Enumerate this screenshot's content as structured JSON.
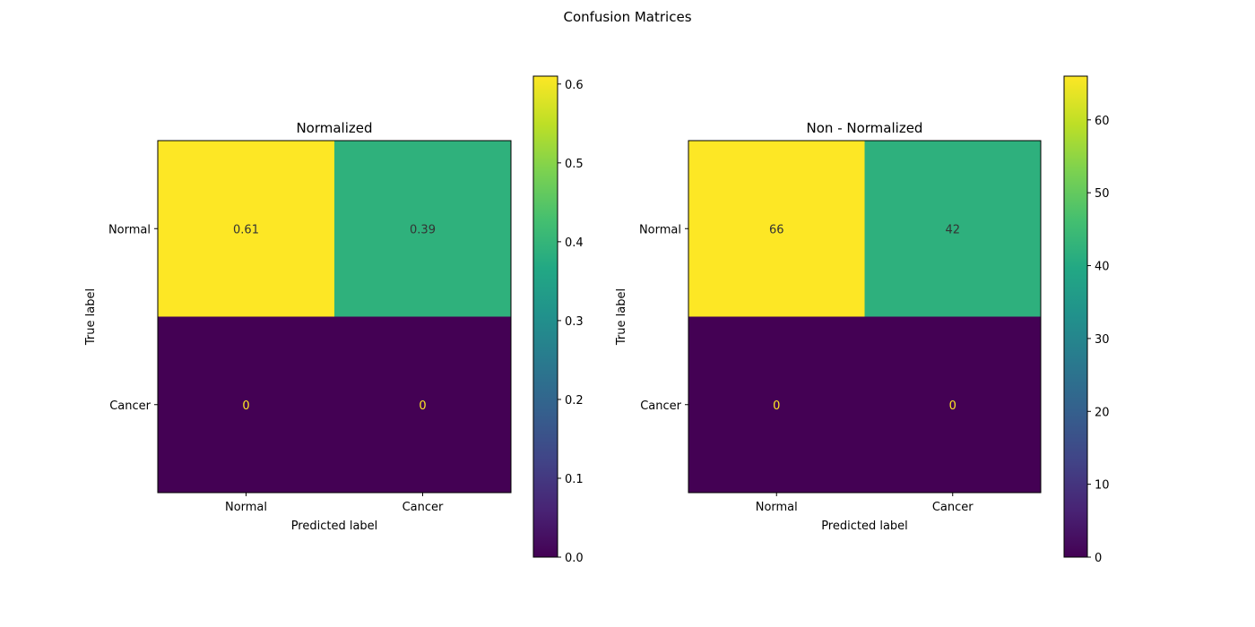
{
  "figure_title": "Confusion Matrices",
  "chart_data": [
    {
      "type": "heatmap",
      "title": "Normalized",
      "xlabel": "Predicted label",
      "ylabel": "True label",
      "x_categories": [
        "Normal",
        "Cancer"
      ],
      "y_categories": [
        "Normal",
        "Cancer"
      ],
      "values": [
        [
          0.61,
          0.39
        ],
        [
          0,
          0
        ]
      ],
      "cell_labels": [
        [
          "0.61",
          "0.39"
        ],
        [
          "0",
          "0"
        ]
      ],
      "colorbar": {
        "range": [
          0,
          0.61
        ],
        "ticks": [
          0.0,
          0.1,
          0.2,
          0.3,
          0.4,
          0.5,
          0.6
        ],
        "tick_labels": [
          "0.0",
          "0.1",
          "0.2",
          "0.3",
          "0.4",
          "0.5",
          "0.6"
        ],
        "colormap": "viridis"
      }
    },
    {
      "type": "heatmap",
      "title": "Non - Normalized",
      "xlabel": "Predicted label",
      "ylabel": "True label",
      "x_categories": [
        "Normal",
        "Cancer"
      ],
      "y_categories": [
        "Normal",
        "Cancer"
      ],
      "values": [
        [
          66,
          42
        ],
        [
          0,
          0
        ]
      ],
      "cell_labels": [
        [
          "66",
          "42"
        ],
        [
          "0",
          "0"
        ]
      ],
      "colorbar": {
        "range": [
          0,
          66
        ],
        "ticks": [
          0,
          10,
          20,
          30,
          40,
          50,
          60
        ],
        "tick_labels": [
          "0",
          "10",
          "20",
          "30",
          "40",
          "50",
          "60"
        ],
        "colormap": "viridis"
      }
    }
  ],
  "colors": {
    "cell_high_text": "#333333",
    "cell_low_text": "#fde725"
  }
}
